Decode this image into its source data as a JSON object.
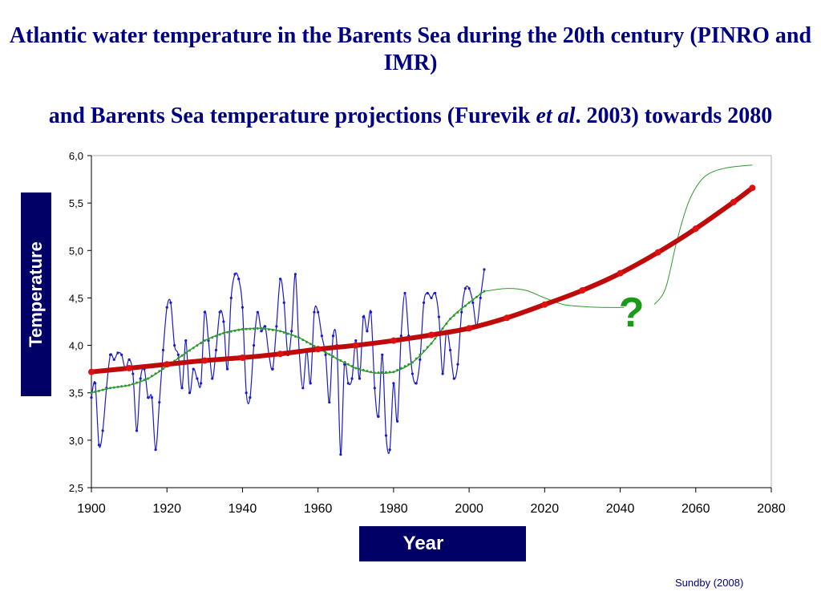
{
  "title_line1": "Atlantic water temperature in the Barents Sea during the 20th century (PINRO and IMR)",
  "title_line2_a": "and Barents Sea temperature projections (Furevik ",
  "title_line2_italic": "et al",
  "title_line2_b": ". 2003) towards 2080",
  "source": "Sundby (2008)",
  "question_mark": "?",
  "colors": {
    "title": "#000080",
    "label_box": "#000066",
    "observed": "#1a1acc",
    "smoothed": "#2e9a2e",
    "projection": "#bf0a0a",
    "question": "#1a9a1a"
  },
  "chart_data": {
    "type": "line",
    "xlabel": "Year",
    "ylabel": "Temperature",
    "xlim": [
      1900,
      2080
    ],
    "ylim": [
      2.5,
      6.0
    ],
    "x_ticks": [
      1900,
      1920,
      1940,
      1960,
      1980,
      2000,
      2020,
      2040,
      2060,
      2080
    ],
    "y_ticks": [
      "2,5",
      "3,0",
      "3,5",
      "4,0",
      "4,5",
      "5,0",
      "5,5",
      "6,0"
    ],
    "grid": false,
    "series": [
      {
        "id": "observed",
        "points": [
          [
            1900,
            3.45
          ],
          [
            1901,
            3.6
          ],
          [
            1902,
            2.95
          ],
          [
            1903,
            3.1
          ],
          [
            1904,
            3.55
          ],
          [
            1905,
            3.9
          ],
          [
            1906,
            3.85
          ],
          [
            1907,
            3.92
          ],
          [
            1908,
            3.9
          ],
          [
            1909,
            3.75
          ],
          [
            1910,
            3.85
          ],
          [
            1911,
            3.7
          ],
          [
            1912,
            3.1
          ],
          [
            1913,
            3.65
          ],
          [
            1914,
            3.75
          ],
          [
            1915,
            3.45
          ],
          [
            1916,
            3.45
          ],
          [
            1917,
            2.9
          ],
          [
            1918,
            3.4
          ],
          [
            1919,
            3.95
          ],
          [
            1920,
            4.4
          ],
          [
            1921,
            4.45
          ],
          [
            1922,
            4.0
          ],
          [
            1923,
            3.9
          ],
          [
            1924,
            3.55
          ],
          [
            1925,
            4.05
          ],
          [
            1926,
            3.5
          ],
          [
            1927,
            3.75
          ],
          [
            1928,
            3.65
          ],
          [
            1929,
            3.6
          ],
          [
            1930,
            4.35
          ],
          [
            1931,
            4.05
          ],
          [
            1932,
            3.65
          ],
          [
            1933,
            3.95
          ],
          [
            1934,
            4.35
          ],
          [
            1935,
            4.25
          ],
          [
            1936,
            3.75
          ],
          [
            1937,
            4.5
          ],
          [
            1938,
            4.75
          ],
          [
            1939,
            4.7
          ],
          [
            1940,
            4.4
          ],
          [
            1941,
            3.5
          ],
          [
            1942,
            3.45
          ],
          [
            1943,
            4.0
          ],
          [
            1944,
            4.35
          ],
          [
            1945,
            4.15
          ],
          [
            1946,
            4.2
          ],
          [
            1947,
            3.9
          ],
          [
            1948,
            3.75
          ],
          [
            1949,
            4.2
          ],
          [
            1950,
            4.7
          ],
          [
            1951,
            4.45
          ],
          [
            1952,
            3.9
          ],
          [
            1953,
            4.15
          ],
          [
            1954,
            4.75
          ],
          [
            1955,
            3.95
          ],
          [
            1956,
            3.55
          ],
          [
            1957,
            3.95
          ],
          [
            1958,
            3.6
          ],
          [
            1959,
            4.35
          ],
          [
            1960,
            4.35
          ],
          [
            1961,
            4.1
          ],
          [
            1962,
            3.9
          ],
          [
            1963,
            3.4
          ],
          [
            1964,
            4.1
          ],
          [
            1965,
            4.0
          ],
          [
            1966,
            2.85
          ],
          [
            1967,
            3.8
          ],
          [
            1968,
            3.6
          ],
          [
            1969,
            3.65
          ],
          [
            1970,
            4.05
          ],
          [
            1971,
            3.65
          ],
          [
            1972,
            4.3
          ],
          [
            1973,
            4.15
          ],
          [
            1974,
            4.35
          ],
          [
            1975,
            3.55
          ],
          [
            1976,
            3.25
          ],
          [
            1977,
            3.9
          ],
          [
            1978,
            3.05
          ],
          [
            1979,
            2.9
          ],
          [
            1980,
            3.6
          ],
          [
            1981,
            3.2
          ],
          [
            1982,
            4.1
          ],
          [
            1983,
            4.55
          ],
          [
            1984,
            4.1
          ],
          [
            1985,
            3.7
          ],
          [
            1986,
            3.6
          ],
          [
            1987,
            3.85
          ],
          [
            1988,
            4.45
          ],
          [
            1989,
            4.55
          ],
          [
            1990,
            4.5
          ],
          [
            1991,
            4.55
          ],
          [
            1992,
            4.3
          ],
          [
            1993,
            3.7
          ],
          [
            1994,
            4.15
          ],
          [
            1995,
            3.95
          ],
          [
            1996,
            3.65
          ],
          [
            1997,
            3.8
          ],
          [
            1998,
            4.35
          ],
          [
            1999,
            4.6
          ],
          [
            2000,
            4.6
          ],
          [
            2001,
            4.45
          ],
          [
            2002,
            4.2
          ],
          [
            2003,
            4.5
          ],
          [
            2004,
            4.8
          ]
        ]
      },
      {
        "id": "smoothed",
        "points": [
          [
            1900,
            3.5
          ],
          [
            1905,
            3.55
          ],
          [
            1910,
            3.58
          ],
          [
            1915,
            3.65
          ],
          [
            1920,
            3.78
          ],
          [
            1925,
            3.92
          ],
          [
            1930,
            4.05
          ],
          [
            1935,
            4.13
          ],
          [
            1940,
            4.17
          ],
          [
            1945,
            4.18
          ],
          [
            1950,
            4.15
          ],
          [
            1955,
            4.08
          ],
          [
            1960,
            3.97
          ],
          [
            1965,
            3.86
          ],
          [
            1970,
            3.76
          ],
          [
            1975,
            3.71
          ],
          [
            1980,
            3.72
          ],
          [
            1985,
            3.82
          ],
          [
            1990,
            4.02
          ],
          [
            1995,
            4.28
          ],
          [
            2000,
            4.45
          ],
          [
            2004,
            4.57
          ]
        ]
      },
      {
        "id": "projection",
        "points": [
          [
            1900,
            3.72
          ],
          [
            1910,
            3.76
          ],
          [
            1920,
            3.8
          ],
          [
            1930,
            3.84
          ],
          [
            1940,
            3.87
          ],
          [
            1950,
            3.91
          ],
          [
            1960,
            3.96
          ],
          [
            1970,
            4.0
          ],
          [
            1980,
            4.05
          ],
          [
            1990,
            4.11
          ],
          [
            2000,
            4.18
          ],
          [
            2010,
            4.29
          ],
          [
            2020,
            4.43
          ],
          [
            2030,
            4.58
          ],
          [
            2040,
            4.76
          ],
          [
            2050,
            4.98
          ],
          [
            2060,
            5.23
          ],
          [
            2070,
            5.51
          ],
          [
            2075,
            5.66
          ]
        ]
      },
      {
        "id": "scenario",
        "points": [
          [
            2004,
            4.57
          ],
          [
            2010,
            4.6
          ],
          [
            2015,
            4.58
          ],
          [
            2020,
            4.5
          ],
          [
            2025,
            4.43
          ],
          [
            2030,
            4.41
          ],
          [
            2035,
            4.4
          ],
          [
            2041,
            4.4
          ]
        ],
        "points2": [
          [
            2049,
            4.43
          ],
          [
            2052,
            4.6
          ],
          [
            2055,
            5.1
          ],
          [
            2058,
            5.5
          ],
          [
            2061,
            5.72
          ],
          [
            2064,
            5.82
          ],
          [
            2068,
            5.87
          ],
          [
            2072,
            5.89
          ],
          [
            2075,
            5.9
          ]
        ]
      }
    ],
    "annotation": {
      "text": "?",
      "x": 2043,
      "y": 4.2
    }
  }
}
